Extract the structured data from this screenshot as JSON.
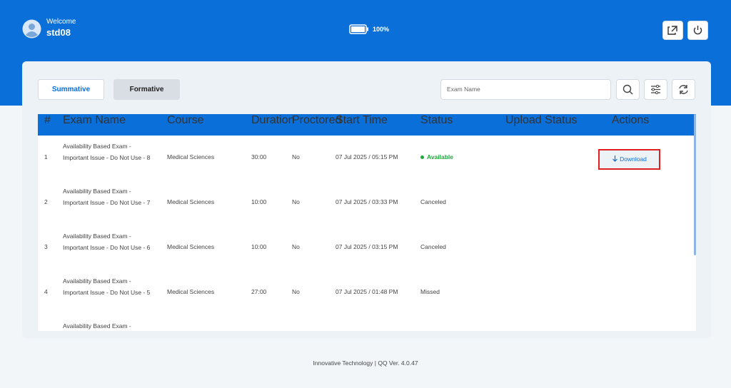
{
  "header": {
    "welcome": "Welcome",
    "username": "std08",
    "battery": "100%"
  },
  "tabs": [
    "Summative",
    "Formative"
  ],
  "search": {
    "placeholder": "Exam Name"
  },
  "table": {
    "columns": [
      "#",
      "Exam Name",
      "Course",
      "Duration",
      "Proctored",
      "Start Time",
      "Status",
      "Upload Status",
      "Actions"
    ],
    "rows": [
      {
        "number": "1",
        "exam_name": "Availability Based Exam - Important Issue - Do Not Use - 8",
        "course": "Medical Sciences",
        "duration": "30:00",
        "proctored": "No",
        "start_time": "07 Jul 2025 / 05:15 PM",
        "status": "Available",
        "action": "Download"
      },
      {
        "number": "2",
        "exam_name": "Availability Based Exam - Important Issue - Do Not Use - 7",
        "course": "Medical Sciences",
        "duration": "10:00",
        "proctored": "No",
        "start_time": "07 Jul 2025 / 03:33 PM",
        "status": "Canceled"
      },
      {
        "number": "3",
        "exam_name": "Availability Based Exam - Important Issue - Do Not Use - 6",
        "course": "Medical Sciences",
        "duration": "10:00",
        "proctored": "No",
        "start_time": "07 Jul 2025 / 03:15 PM",
        "status": "Canceled"
      },
      {
        "number": "4",
        "exam_name": "Availability Based Exam - Important Issue - Do Not Use - 5",
        "course": "Medical Sciences",
        "duration": "27:00",
        "proctored": "No",
        "start_time": "07 Jul 2025 / 01:48 PM",
        "status": "Missed"
      },
      {
        "exam_name": "Availability Based Exam -"
      }
    ]
  },
  "footer": "Innovative Technology | QQ Ver. 4.0.47"
}
